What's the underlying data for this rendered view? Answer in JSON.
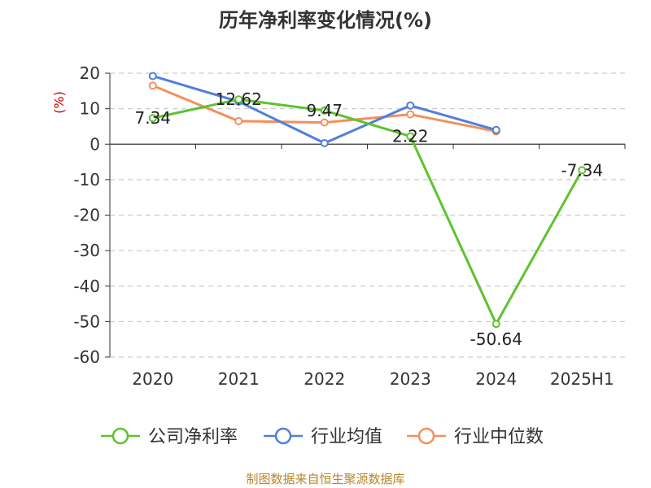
{
  "chart_data": {
    "type": "line",
    "title": "历年净利率变化情况(%)",
    "ylabel": "(%)",
    "xlabel": "",
    "categories": [
      "2020",
      "2021",
      "2022",
      "2023",
      "2024",
      "2025H1"
    ],
    "yticks": [
      20,
      10,
      0,
      -10,
      -20,
      -30,
      -40,
      -50,
      -60
    ],
    "ylim": [
      -60,
      20
    ],
    "grid": true,
    "legend_position": "bottom",
    "series": [
      {
        "name": "公司净利率",
        "color": "#5ec32e",
        "values": [
          7.34,
          12.62,
          9.47,
          2.22,
          -50.64,
          -7.34
        ],
        "labels": [
          "7.34",
          "12.62",
          "9.47",
          "2.22",
          "-50.64",
          "-7.34"
        ]
      },
      {
        "name": "行业均值",
        "color": "#4f7fde",
        "values": [
          19.2,
          12.0,
          0.3,
          10.9,
          4.0,
          null
        ]
      },
      {
        "name": "行业中位数",
        "color": "#f58f5a",
        "values": [
          16.5,
          6.5,
          6.1,
          8.4,
          3.6,
          null
        ]
      }
    ]
  },
  "source": "制图数据来自恒生聚源数据库"
}
